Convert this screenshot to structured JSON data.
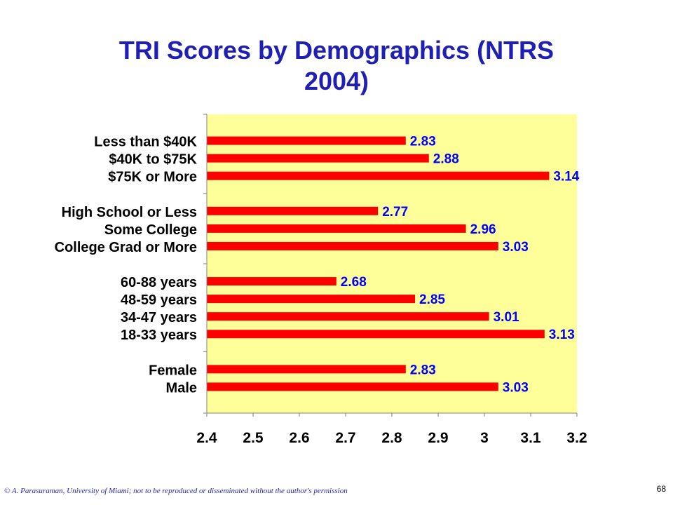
{
  "slide": {
    "title_line1": "TRI Scores by Demographics (NTRS",
    "title_line2": "2004)",
    "footer_note": "© A. Parasuraman, University of Miami; not to be reproduced or disseminated without the author's permission",
    "page_number": "68"
  },
  "colors": {
    "title": "#1f1fb4",
    "plot_background": "#ffff99",
    "bar": "#ff0000",
    "data_label": "#0000ff",
    "axis_text": "#000000"
  },
  "chart_data": {
    "type": "bar",
    "orientation": "horizontal",
    "title": "TRI Scores by Demographics (NTRS 2004)",
    "xlim": [
      2.4,
      3.2
    ],
    "xticks": [
      "2.4",
      "2.5",
      "2.6",
      "2.7",
      "2.8",
      "2.9",
      "3",
      "3.1",
      "3.2"
    ],
    "grid": false,
    "groups": [
      {
        "categories": [
          "Less than $40K",
          "$40K to $75K",
          "$75K or More"
        ],
        "values": [
          2.83,
          2.88,
          3.14
        ]
      },
      {
        "categories": [
          "High School or Less",
          "Some College",
          "College Grad or More"
        ],
        "values": [
          2.77,
          2.96,
          3.03
        ]
      },
      {
        "categories": [
          "60-88 years",
          "48-59 years",
          "34-47 years",
          "18-33 years"
        ],
        "values": [
          2.68,
          2.85,
          3.01,
          3.13
        ]
      },
      {
        "categories": [
          "Female",
          "Male"
        ],
        "values": [
          2.83,
          3.03
        ]
      }
    ]
  }
}
